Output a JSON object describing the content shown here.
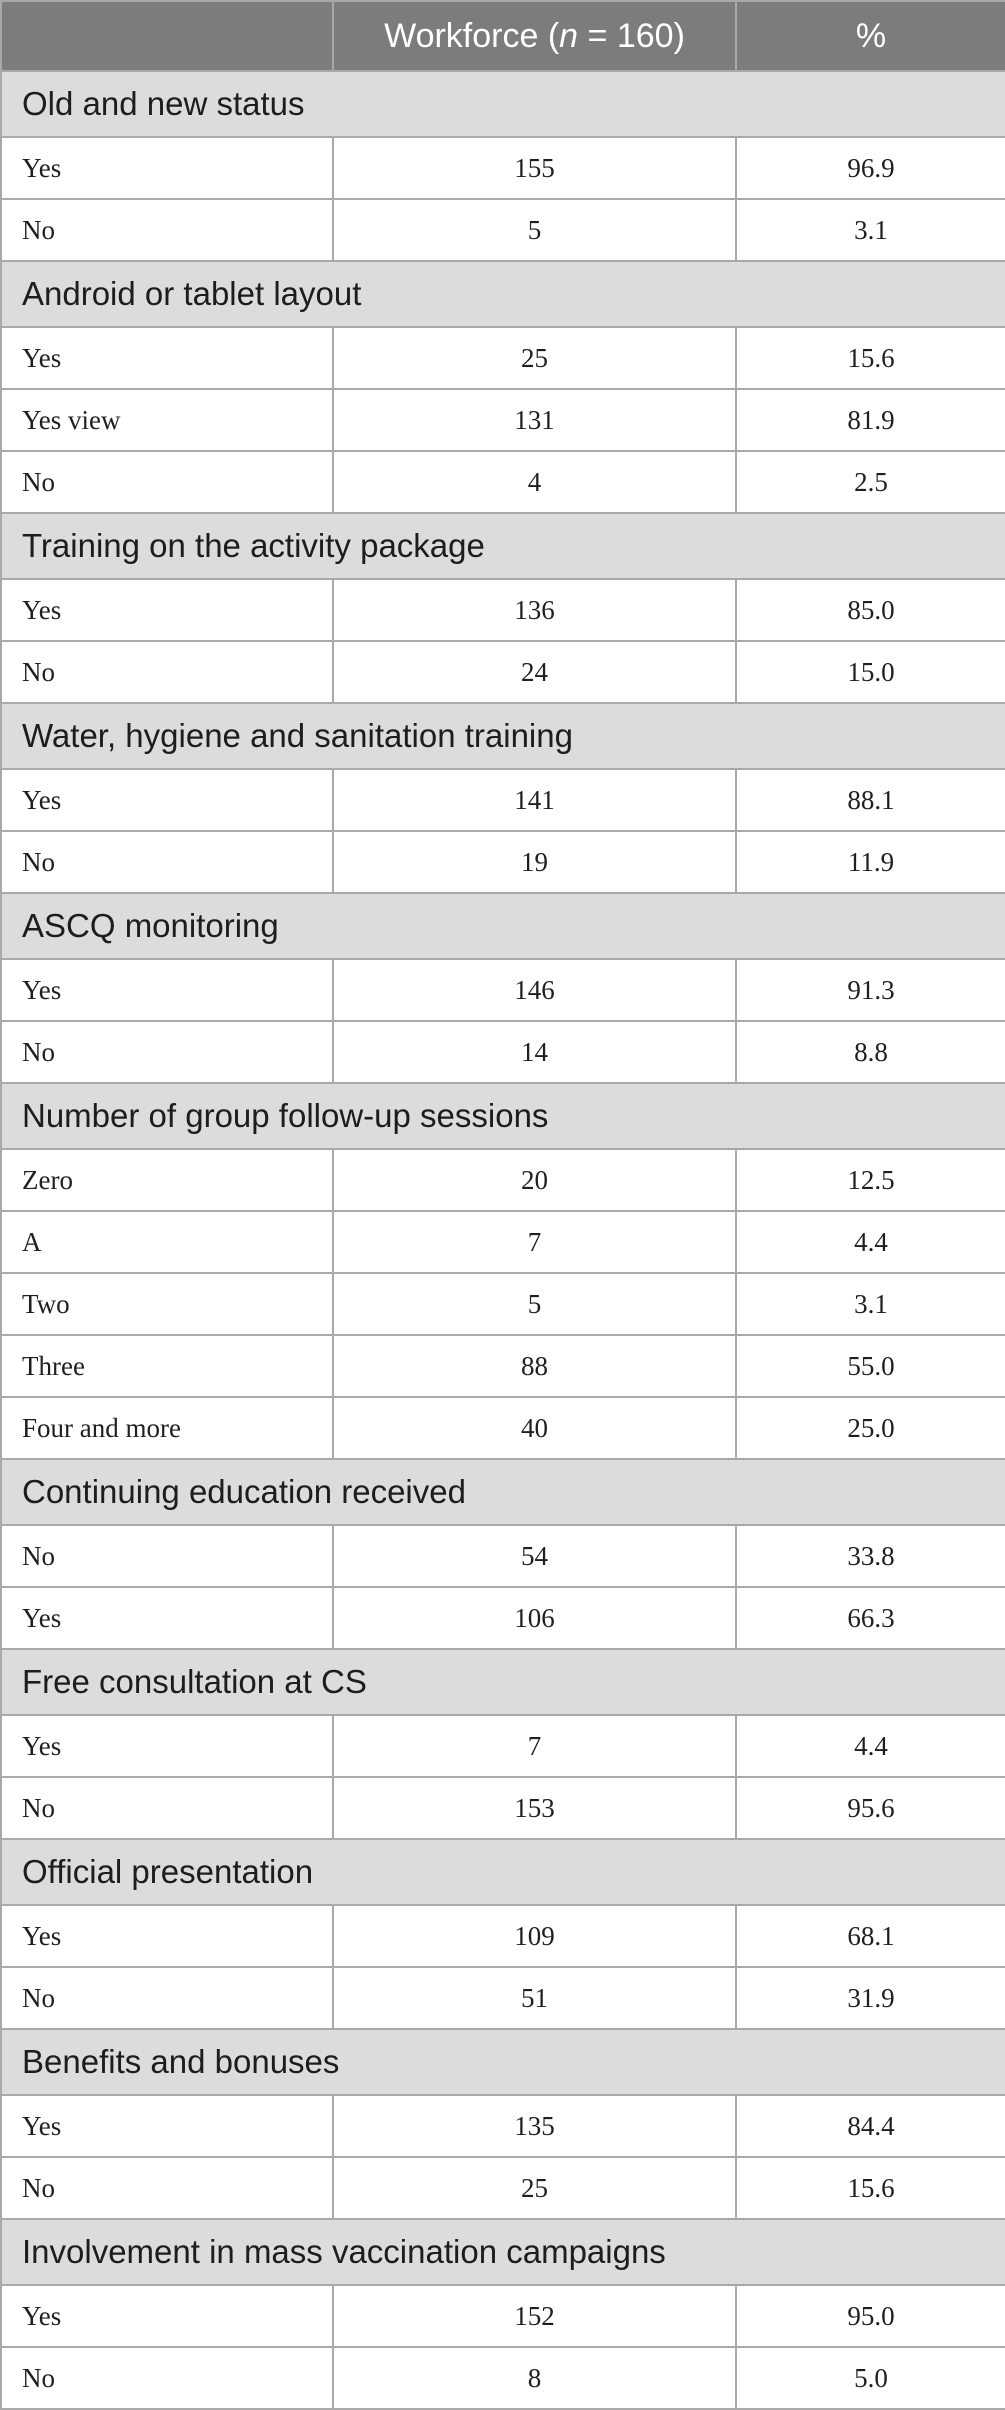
{
  "header": {
    "col1": "",
    "col2_prefix": "Workforce (",
    "col2_var": "n",
    "col2_suffix": " = 160)",
    "col3": "%"
  },
  "sections": [
    {
      "title": "Old and new status",
      "rows": [
        {
          "label": "Yes",
          "count": "155",
          "pct": "96.9"
        },
        {
          "label": "No",
          "count": "5",
          "pct": "3.1"
        }
      ]
    },
    {
      "title": "Android or tablet layout",
      "rows": [
        {
          "label": "Yes",
          "count": "25",
          "pct": "15.6"
        },
        {
          "label": "Yes view",
          "count": "131",
          "pct": "81.9"
        },
        {
          "label": "No",
          "count": "4",
          "pct": "2.5"
        }
      ]
    },
    {
      "title": "Training on the activity package",
      "rows": [
        {
          "label": "Yes",
          "count": "136",
          "pct": "85.0"
        },
        {
          "label": "No",
          "count": "24",
          "pct": "15.0"
        }
      ]
    },
    {
      "title": "Water, hygiene and sanitation training",
      "rows": [
        {
          "label": "Yes",
          "count": "141",
          "pct": "88.1"
        },
        {
          "label": "No",
          "count": "19",
          "pct": "11.9"
        }
      ]
    },
    {
      "title": "ASCQ monitoring",
      "rows": [
        {
          "label": "Yes",
          "count": "146",
          "pct": "91.3"
        },
        {
          "label": "No",
          "count": "14",
          "pct": "8.8"
        }
      ]
    },
    {
      "title": "Number of group follow-up sessions",
      "rows": [
        {
          "label": "Zero",
          "count": "20",
          "pct": "12.5"
        },
        {
          "label": "A",
          "count": "7",
          "pct": "4.4"
        },
        {
          "label": "Two",
          "count": "5",
          "pct": "3.1"
        },
        {
          "label": "Three",
          "count": "88",
          "pct": "55.0"
        },
        {
          "label": "Four and more",
          "count": "40",
          "pct": "25.0"
        }
      ]
    },
    {
      "title": "Continuing education received",
      "rows": [
        {
          "label": "No",
          "count": "54",
          "pct": "33.8"
        },
        {
          "label": "Yes",
          "count": "106",
          "pct": "66.3"
        }
      ]
    },
    {
      "title": "Free consultation at CS",
      "rows": [
        {
          "label": "Yes",
          "count": "7",
          "pct": "4.4"
        },
        {
          "label": "No",
          "count": "153",
          "pct": "95.6"
        }
      ]
    },
    {
      "title": "Official presentation",
      "rows": [
        {
          "label": "Yes",
          "count": "109",
          "pct": "68.1"
        },
        {
          "label": "No",
          "count": "51",
          "pct": "31.9"
        }
      ]
    },
    {
      "title": "Benefits and bonuses",
      "rows": [
        {
          "label": "Yes",
          "count": "135",
          "pct": "84.4"
        },
        {
          "label": "No",
          "count": "25",
          "pct": "15.6"
        }
      ]
    },
    {
      "title": "Involvement in mass vaccination campaigns",
      "rows": [
        {
          "label": "Yes",
          "count": "152",
          "pct": "95.0"
        },
        {
          "label": "No",
          "count": "8",
          "pct": "5.0"
        }
      ]
    }
  ]
}
